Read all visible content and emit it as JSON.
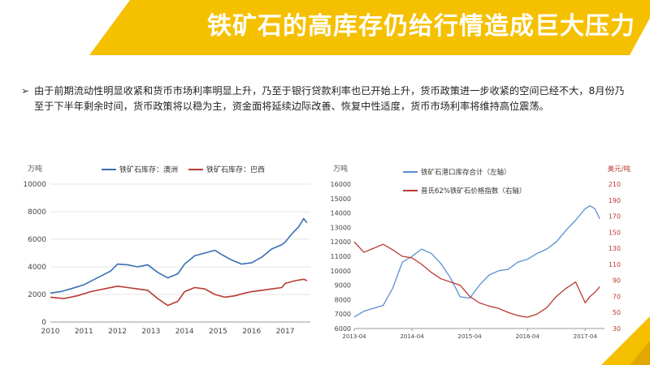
{
  "title": "铁矿石的高库存仍给行情造成巨大压力",
  "bullet_text": "由于前期流动性明显收紧和货币市场利率明显上升，乃至于银行贷款利率也已开始上升，货币政策进一步收紧的空间已经不大，8月份乃至于下半年剩余时间，货币政策将以稳为主，资金面将延续边际改善、恢复中性适度，货币市场利率将维持高位震荡。",
  "bullet_icon": "arrow-bullet-icon",
  "colors": {
    "accent": "#f5c000",
    "series_blue": "#3a6fb2",
    "series_red": "#b83a32"
  },
  "chart_data": [
    {
      "type": "line",
      "ylabel": "万吨",
      "ylim": [
        0,
        10000
      ],
      "yticks": [
        "0",
        "2000",
        "4000",
        "6000",
        "8000",
        "10000"
      ],
      "xlim": [
        2010,
        2017.75
      ],
      "xticks": [
        "2010",
        "2011",
        "2012",
        "2013",
        "2014",
        "2015",
        "2016",
        "2017"
      ],
      "grid": true,
      "legend": "top",
      "series": [
        {
          "name": "铁矿石库存：澳洲",
          "color": "#3a6fb2",
          "x": [
            2010,
            2010.3,
            2010.6,
            2011,
            2011.4,
            2011.8,
            2012,
            2012.3,
            2012.6,
            2012.9,
            2013.2,
            2013.5,
            2013.8,
            2014,
            2014.3,
            2014.6,
            2014.9,
            2015.1,
            2015.4,
            2015.7,
            2016,
            2016.3,
            2016.6,
            2016.9,
            2017,
            2017.2,
            2017.4,
            2017.55,
            2017.65
          ],
          "y": [
            2100,
            2200,
            2400,
            2700,
            3200,
            3700,
            4200,
            4150,
            4000,
            4150,
            3600,
            3200,
            3500,
            4200,
            4800,
            5000,
            5200,
            4900,
            4500,
            4200,
            4300,
            4700,
            5300,
            5600,
            5800,
            6400,
            6900,
            7500,
            7200
          ]
        },
        {
          "name": "铁矿石库存：巴西",
          "color": "#b83a32",
          "x": [
            2010,
            2010.4,
            2010.8,
            2011.2,
            2011.6,
            2012,
            2012.3,
            2012.6,
            2012.9,
            2013.2,
            2013.5,
            2013.8,
            2014,
            2014.3,
            2014.6,
            2014.9,
            2015.2,
            2015.5,
            2015.8,
            2016,
            2016.3,
            2016.6,
            2016.9,
            2017,
            2017.3,
            2017.55,
            2017.65
          ],
          "y": [
            1800,
            1700,
            1900,
            2200,
            2400,
            2600,
            2500,
            2400,
            2300,
            1700,
            1200,
            1500,
            2200,
            2500,
            2400,
            2000,
            1800,
            1900,
            2100,
            2200,
            2300,
            2400,
            2500,
            2800,
            3000,
            3100,
            3000
          ]
        }
      ]
    },
    {
      "type": "line",
      "ylabel_left": "万吨",
      "ylabel_right": "美元/吨",
      "ylim_left": [
        6000,
        16000
      ],
      "ylim_right": [
        30,
        210
      ],
      "yticks_left": [
        "6000",
        "7000",
        "8000",
        "9000",
        "10000",
        "11000",
        "12000",
        "13000",
        "14000",
        "15000",
        "16000"
      ],
      "yticks_right": [
        "30",
        "50",
        "70",
        "90",
        "110",
        "130",
        "150",
        "170",
        "190",
        "210"
      ],
      "xticks": [
        "2013-04",
        "2014-04",
        "2015-04",
        "2016-04",
        "2017-04"
      ],
      "xlim": [
        0,
        52
      ],
      "grid": false,
      "legend": "top-left",
      "series": [
        {
          "name": "铁矿石港口库存合计（左轴）",
          "axis": "left",
          "color": "#5b8fd0",
          "x": [
            0,
            2,
            4,
            6,
            8,
            10,
            12,
            14,
            16,
            18,
            20,
            22,
            24,
            26,
            28,
            30,
            32,
            34,
            36,
            38,
            40,
            42,
            44,
            46,
            48,
            49,
            50,
            51
          ],
          "y": [
            6800,
            7200,
            7400,
            7600,
            8800,
            10600,
            11000,
            11500,
            11200,
            10500,
            9500,
            8200,
            8100,
            9000,
            9700,
            10000,
            10100,
            10600,
            10800,
            11200,
            11500,
            12000,
            12800,
            13500,
            14300,
            14500,
            14300,
            13600
          ]
        },
        {
          "name": "普氏62%铁矿石价格指数（右轴）",
          "axis": "right",
          "color": "#b83a32",
          "x": [
            0,
            2,
            4,
            6,
            8,
            10,
            12,
            14,
            16,
            18,
            20,
            22,
            24,
            26,
            28,
            30,
            32,
            34,
            36,
            38,
            40,
            42,
            44,
            46,
            48,
            49,
            50,
            51
          ],
          "y": [
            138,
            125,
            130,
            135,
            128,
            120,
            118,
            110,
            100,
            92,
            88,
            84,
            70,
            62,
            58,
            55,
            50,
            46,
            44,
            48,
            56,
            70,
            80,
            88,
            62,
            70,
            75,
            82
          ]
        }
      ]
    }
  ]
}
